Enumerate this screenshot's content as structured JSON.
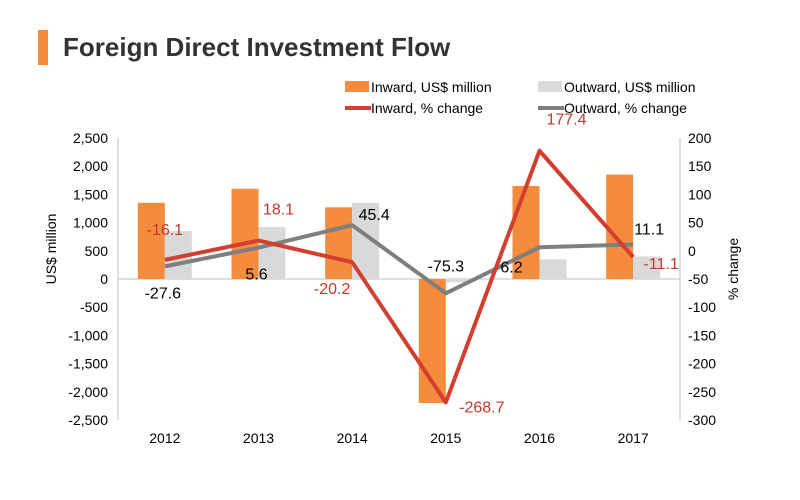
{
  "title": "Foreign Direct Investment Flow",
  "colors": {
    "accent": "#F58B3C",
    "inward_bar": "#F58B3C",
    "outward_bar": "#D9D9D9",
    "inward_line": "#D23F31",
    "outward_line": "#7F7F7F",
    "inward_label": "#C0392B",
    "outward_label": "#000000"
  },
  "chart_data": {
    "type": "bar",
    "categories": [
      "2012",
      "2013",
      "2014",
      "2015",
      "2016",
      "2017"
    ],
    "ylabel": "US$ million",
    "y2label": "% change",
    "ylim": [
      -2500,
      2500
    ],
    "y2lim": [
      -300,
      200
    ],
    "yticks": [
      "2,500",
      "2,000",
      "1,500",
      "1,000",
      "500",
      "0",
      "-500",
      "-1,000",
      "-1,500",
      "-2,000",
      "-2,500"
    ],
    "y2ticks": [
      "200",
      "150",
      "100",
      "50",
      "0",
      "-50",
      "-100",
      "-150",
      "-200",
      "-250",
      "-300"
    ],
    "legend_position": "top",
    "series": [
      {
        "name": "Inward, US$ million",
        "kind": "bar",
        "axis": "left",
        "values": [
          1350,
          1600,
          1270,
          -2200,
          1650,
          1850
        ]
      },
      {
        "name": "Outward, US$ million",
        "kind": "bar",
        "axis": "left",
        "values": [
          850,
          920,
          1350,
          -60,
          350,
          400
        ]
      },
      {
        "name": "Inward, % change",
        "kind": "line",
        "axis": "right",
        "values": [
          -16.1,
          18.1,
          -20.2,
          -268.7,
          177.4,
          -11.1
        ],
        "labels": [
          "-16.1",
          "18.1",
          "-20.2",
          "-268.7",
          "177.4",
          "-11.1"
        ]
      },
      {
        "name": "Outward, % change",
        "kind": "line",
        "axis": "right",
        "values": [
          -27.6,
          5.6,
          45.4,
          -75.3,
          6.2,
          11.1
        ],
        "labels": [
          "-27.6",
          "5.6",
          "45.4",
          "-75.3",
          "6.2",
          "11.1"
        ]
      }
    ]
  }
}
